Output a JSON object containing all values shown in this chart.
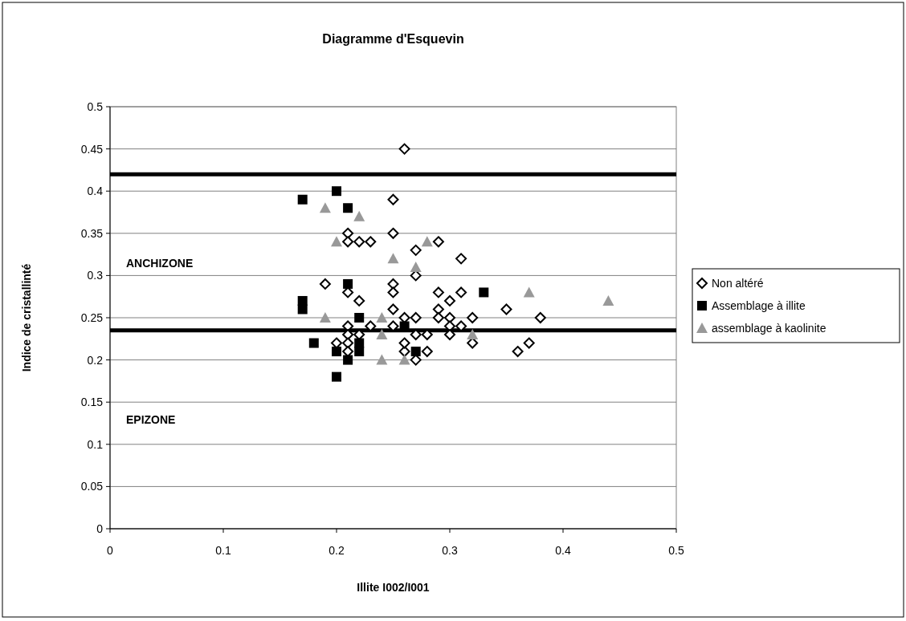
{
  "chart_data": {
    "type": "scatter",
    "title": "Diagramme d'Esquevin",
    "xlabel": "Illite I002/I001",
    "ylabel": "Indice de cristallinté",
    "xlim": [
      0,
      0.5
    ],
    "xticks": [
      0,
      0.1,
      0.2,
      0.3,
      0.4,
      0.5
    ],
    "ylim": [
      0,
      0.5
    ],
    "yticks": [
      0,
      0.05,
      0.1,
      0.15,
      0.2,
      0.25,
      0.3,
      0.35,
      0.4,
      0.45,
      0.5
    ],
    "grid": "y",
    "legend": "right",
    "ref_lines": [
      {
        "axis": "y",
        "value": 0.42,
        "color": "#000000"
      },
      {
        "axis": "y",
        "value": 0.235,
        "color": "#000000"
      }
    ],
    "annotations": [
      "ANCHIZONE",
      "EPIZONE"
    ],
    "series": [
      {
        "name": "Non altéré",
        "color": "#000000",
        "marker": "diamond",
        "x": [
          0.26,
          0.25,
          0.25,
          0.21,
          0.21,
          0.22,
          0.23,
          0.27,
          0.29,
          0.31,
          0.27,
          0.19,
          0.25,
          0.25,
          0.21,
          0.22,
          0.25,
          0.29,
          0.3,
          0.31,
          0.29,
          0.35,
          0.38,
          0.32,
          0.29,
          0.26,
          0.27,
          0.3,
          0.3,
          0.31,
          0.3,
          0.32,
          0.36,
          0.37,
          0.28,
          0.27,
          0.28,
          0.27,
          0.26,
          0.26,
          0.25,
          0.23,
          0.21,
          0.21,
          0.21,
          0.2,
          0.21,
          0.22
        ],
        "values": [
          0.45,
          0.39,
          0.35,
          0.35,
          0.34,
          0.34,
          0.34,
          0.33,
          0.34,
          0.32,
          0.3,
          0.29,
          0.29,
          0.28,
          0.28,
          0.27,
          0.26,
          0.28,
          0.27,
          0.28,
          0.26,
          0.26,
          0.25,
          0.25,
          0.25,
          0.25,
          0.25,
          0.25,
          0.24,
          0.24,
          0.23,
          0.22,
          0.21,
          0.22,
          0.23,
          0.23,
          0.21,
          0.2,
          0.21,
          0.22,
          0.24,
          0.24,
          0.24,
          0.23,
          0.22,
          0.22,
          0.21,
          0.23
        ]
      },
      {
        "name": "Assemblage à illite",
        "color": "#000000",
        "marker": "square",
        "x": [
          0.17,
          0.2,
          0.21,
          0.21,
          0.17,
          0.17,
          0.22,
          0.18,
          0.2,
          0.21,
          0.22,
          0.22,
          0.2,
          0.26,
          0.27,
          0.33
        ],
        "values": [
          0.39,
          0.4,
          0.38,
          0.29,
          0.27,
          0.26,
          0.25,
          0.22,
          0.21,
          0.2,
          0.22,
          0.21,
          0.18,
          0.24,
          0.21,
          0.28
        ]
      },
      {
        "name": "assemblage à kaolinite",
        "color": "#999999",
        "marker": "triangle",
        "x": [
          0.19,
          0.22,
          0.2,
          0.25,
          0.27,
          0.28,
          0.19,
          0.24,
          0.24,
          0.24,
          0.26,
          0.32,
          0.37,
          0.44
        ],
        "values": [
          0.38,
          0.37,
          0.34,
          0.32,
          0.31,
          0.34,
          0.25,
          0.25,
          0.23,
          0.2,
          0.2,
          0.23,
          0.28,
          0.27
        ]
      }
    ]
  }
}
